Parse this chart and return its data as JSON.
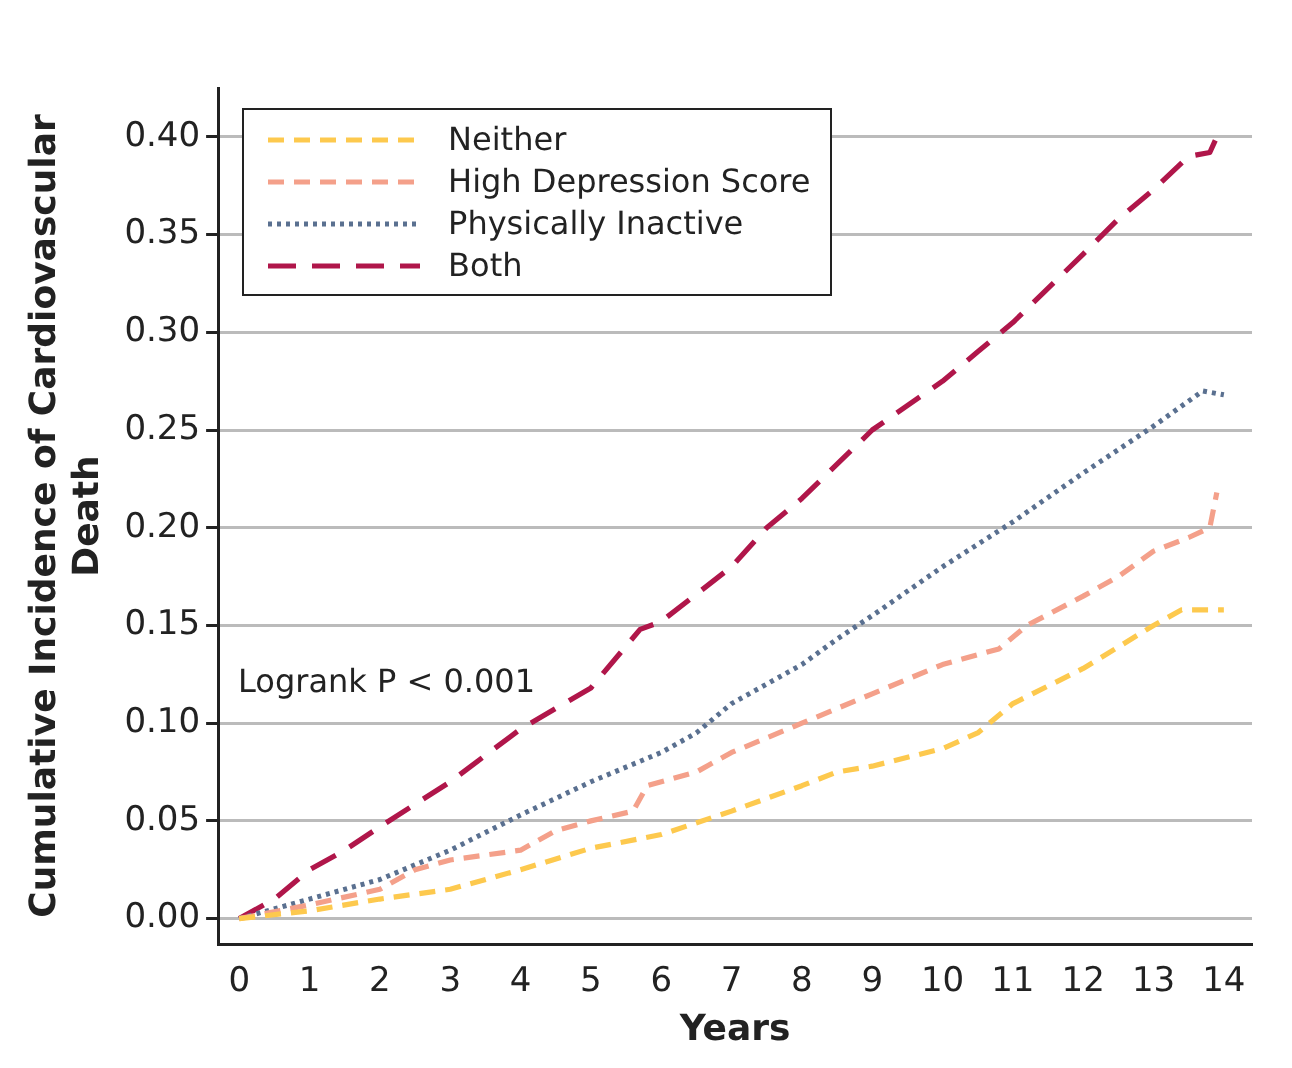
{
  "chart_data": {
    "type": "line",
    "xlabel": "Years",
    "ylabel": "Cumulative Incidence of Cardiovascular Death",
    "annotations": [
      "Logrank P < 0.001"
    ],
    "legend": "top left",
    "grid": "y",
    "marker": "none",
    "xlim": [
      -0.3,
      14.4
    ],
    "xticks": [
      0,
      1,
      2,
      3,
      4,
      5,
      6,
      7,
      8,
      9,
      10,
      11,
      12,
      13,
      14
    ],
    "ylim": [
      -0.013,
      0.425
    ],
    "yticks": [
      {
        "value": 0,
        "label": "0.00"
      },
      {
        "value": 0.05,
        "label": "0.05"
      },
      {
        "value": 0.1,
        "label": "0.10"
      },
      {
        "value": 0.15,
        "label": "0.15"
      },
      {
        "value": 0.2,
        "label": "0.20"
      },
      {
        "value": 0.25,
        "label": "0.25"
      },
      {
        "value": 0.3,
        "label": "0.30"
      },
      {
        "value": 0.35,
        "label": "0.35"
      },
      {
        "value": 0.4,
        "label": "0.40"
      }
    ],
    "series": [
      {
        "name": "Neither",
        "color": "#fdc94e",
        "line_style": "dashed",
        "x": [
          0,
          1,
          2,
          3,
          4,
          5,
          6,
          7,
          8,
          8.5,
          9,
          10,
          10.5,
          11,
          12,
          13,
          13.4,
          14
        ],
        "values": [
          0,
          0.004,
          0.01,
          0.015,
          0.025,
          0.036,
          0.043,
          0.055,
          0.068,
          0.075,
          0.078,
          0.087,
          0.095,
          0.11,
          0.128,
          0.15,
          0.158,
          0.158
        ]
      },
      {
        "name": "High Depression Score",
        "color": "#f4a08a",
        "line_style": "dashed",
        "x": [
          0,
          1,
          2,
          2.5,
          3,
          4,
          4.5,
          5,
          5.6,
          5.8,
          6.5,
          7,
          8,
          9,
          10,
          10.8,
          11.2,
          12,
          12.5,
          13,
          13.5,
          13.8,
          13.9
        ],
        "values": [
          0,
          0.007,
          0.015,
          0.025,
          0.03,
          0.035,
          0.045,
          0.05,
          0.055,
          0.068,
          0.075,
          0.085,
          0.1,
          0.115,
          0.13,
          0.138,
          0.15,
          0.165,
          0.175,
          0.188,
          0.195,
          0.2,
          0.218
        ]
      },
      {
        "name": "Physically Inactive",
        "color": "#5a7090",
        "line_style": "dotted",
        "x": [
          0,
          1,
          2,
          3,
          4,
          5,
          6,
          6.5,
          7,
          8,
          8.5,
          9,
          10,
          11,
          12,
          13,
          13.7,
          14
        ],
        "values": [
          0,
          0.01,
          0.02,
          0.035,
          0.053,
          0.07,
          0.085,
          0.095,
          0.11,
          0.13,
          0.143,
          0.155,
          0.18,
          0.203,
          0.228,
          0.252,
          0.27,
          0.268
        ]
      },
      {
        "name": "Both",
        "color": "#b0164a",
        "line_style": "dashed",
        "x": [
          0,
          0.5,
          1,
          1.5,
          2,
          3,
          4,
          5,
          5.7,
          6,
          7,
          7.5,
          8,
          9,
          10,
          10.5,
          11,
          12,
          12.5,
          13,
          13.5,
          13.8,
          13.9
        ],
        "values": [
          0,
          0.01,
          0.025,
          0.035,
          0.047,
          0.07,
          0.097,
          0.118,
          0.148,
          0.152,
          0.18,
          0.2,
          0.215,
          0.25,
          0.275,
          0.29,
          0.305,
          0.34,
          0.358,
          0.373,
          0.39,
          0.392,
          0.4
        ]
      }
    ]
  }
}
